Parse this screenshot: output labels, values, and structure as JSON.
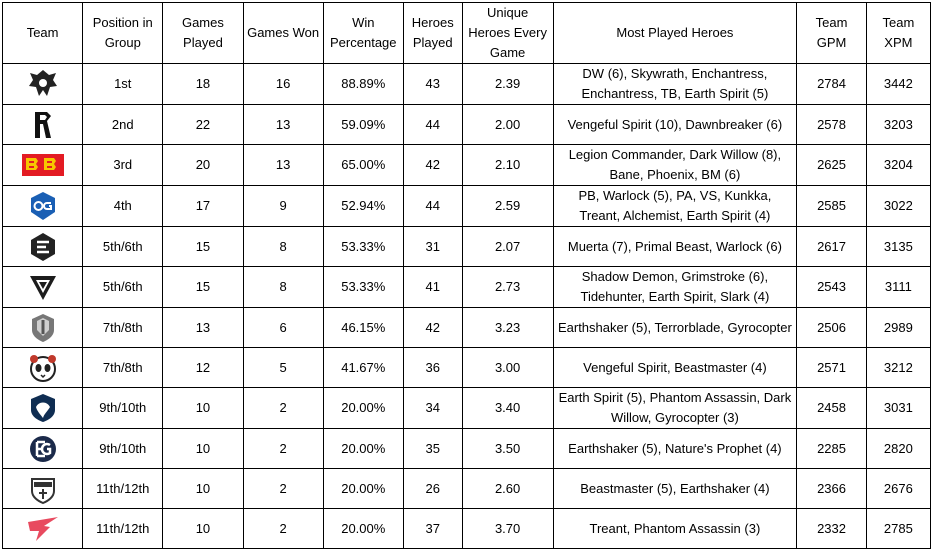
{
  "headers": {
    "team": "Team",
    "position": "Position in Group",
    "games_played": "Games Played",
    "games_won": "Games Won",
    "win_percentage": "Win Percentage",
    "heroes_played": "Heroes Played",
    "unique_heroes": "Unique Heroes Every Game",
    "most_played": "Most Played Heroes",
    "gpm": "Team GPM",
    "xpm": "Team XPM"
  },
  "rows": [
    {
      "logo": "team-spirit-logo",
      "position": "1st",
      "games_played": "18",
      "games_won": "16",
      "win_percentage": "88.89%",
      "heroes_played": "43",
      "unique_heroes": "2.39",
      "most_played": "DW (6), Skywrath, Enchantress, Enchantress, TB, Earth Spirit (5)",
      "gpm": "2784",
      "xpm": "3442"
    },
    {
      "logo": "shopify-rebellion-logo",
      "position": "2nd",
      "games_played": "22",
      "games_won": "13",
      "win_percentage": "59.09%",
      "heroes_played": "44",
      "unique_heroes": "2.00",
      "most_played": "Vengeful Spirit (10), Dawnbreaker (6)",
      "gpm": "2578",
      "xpm": "3203"
    },
    {
      "logo": "betboom-logo",
      "position": "3rd",
      "games_played": "20",
      "games_won": "13",
      "win_percentage": "65.00%",
      "heroes_played": "42",
      "unique_heroes": "2.10",
      "most_played": "Legion Commander, Dark Willow (8), Bane, Phoenix, BM (6)",
      "gpm": "2625",
      "xpm": "3204"
    },
    {
      "logo": "og-logo",
      "position": "4th",
      "games_played": "17",
      "games_won": "9",
      "win_percentage": "52.94%",
      "heroes_played": "44",
      "unique_heroes": "2.59",
      "most_played": "PB, Warlock (5), PA, VS, Kunkka, Treant, Alchemist, Earth Spirit (4)",
      "gpm": "2585",
      "xpm": "3022"
    },
    {
      "logo": "entity-logo",
      "position": "5th/6th",
      "games_played": "15",
      "games_won": "8",
      "win_percentage": "53.33%",
      "heroes_played": "31",
      "unique_heroes": "2.07",
      "most_played": "Muerta (7), Primal Beast, Warlock (6)",
      "gpm": "2617",
      "xpm": "3135"
    },
    {
      "logo": "tundra-logo",
      "position": "5th/6th",
      "games_played": "15",
      "games_won": "8",
      "win_percentage": "53.33%",
      "heroes_played": "41",
      "unique_heroes": "2.73",
      "most_played": "Shadow Demon, Grimstroke (6), Tidehunter, Earth Spirit, Slark (4)",
      "gpm": "2543",
      "xpm": "3111"
    },
    {
      "logo": "gaimin-gladiators-logo",
      "position": "7th/8th",
      "games_played": "13",
      "games_won": "6",
      "win_percentage": "46.15%",
      "heroes_played": "42",
      "unique_heroes": "3.23",
      "most_played": "Earthshaker (5), Terrorblade, Gyrocopter",
      "gpm": "2506",
      "xpm": "2989"
    },
    {
      "logo": "9pandas-logo",
      "position": "7th/8th",
      "games_played": "12",
      "games_won": "5",
      "win_percentage": "41.67%",
      "heroes_played": "36",
      "unique_heroes": "3.00",
      "most_played": "Vengeful Spirit, Beastmaster (4)",
      "gpm": "2571",
      "xpm": "3212"
    },
    {
      "logo": "team-liquid-logo",
      "position": "9th/10th",
      "games_played": "10",
      "games_won": "2",
      "win_percentage": "20.00%",
      "heroes_played": "34",
      "unique_heroes": "3.40",
      "most_played": "Earth Spirit (5), Phantom Assassin, Dark Willow, Gyrocopter (3)",
      "gpm": "2458",
      "xpm": "3031"
    },
    {
      "logo": "evil-geniuses-logo",
      "position": "9th/10th",
      "games_played": "10",
      "games_won": "2",
      "win_percentage": "20.00%",
      "heroes_played": "35",
      "unique_heroes": "3.50",
      "most_played": "Earthshaker (5), Nature's Prophet (4)",
      "gpm": "2285",
      "xpm": "2820"
    },
    {
      "logo": "quest-logo",
      "position": "11th/12th",
      "games_played": "10",
      "games_won": "2",
      "win_percentage": "20.00%",
      "heroes_played": "26",
      "unique_heroes": "2.60",
      "most_played": "Beastmaster (5), Earthshaker (4)",
      "gpm": "2366",
      "xpm": "2676"
    },
    {
      "logo": "talon-logo",
      "position": "11th/12th",
      "games_played": "10",
      "games_won": "2",
      "win_percentage": "20.00%",
      "heroes_played": "37",
      "unique_heroes": "3.70",
      "most_played": "Treant, Phantom Assassin (3)",
      "gpm": "2332",
      "xpm": "2785"
    }
  ]
}
